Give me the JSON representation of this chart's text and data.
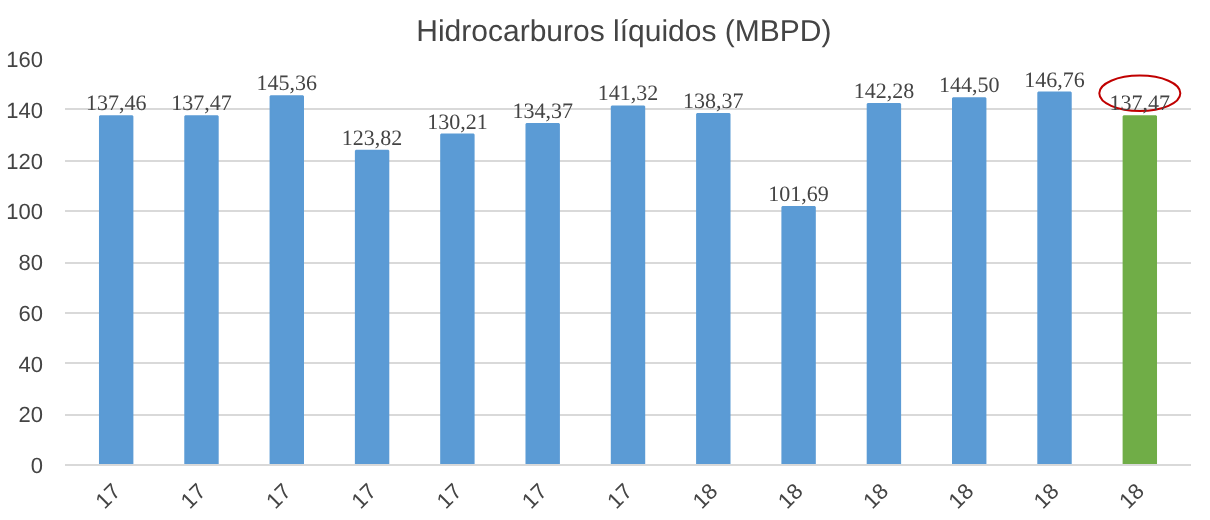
{
  "chart_data": {
    "type": "bar",
    "title": "Hidrocarburos líquidos  (MBPD)",
    "categories": [
      "17",
      "17",
      "17",
      "17",
      "17",
      "17",
      "17",
      "18",
      "18",
      "18",
      "18",
      "18",
      "18"
    ],
    "values": [
      137.46,
      137.47,
      145.36,
      123.82,
      130.21,
      134.37,
      141.32,
      138.37,
      101.69,
      142.28,
      144.5,
      146.76,
      137.47
    ],
    "value_labels": [
      "137,46",
      "137,47",
      "145,36",
      "123,82",
      "130,21",
      "134,37",
      "141,32",
      "138,37",
      "101,69",
      "142,28",
      "144,50",
      "146,76",
      "137,47"
    ],
    "colors": [
      "#5b9bd5",
      "#5b9bd5",
      "#5b9bd5",
      "#5b9bd5",
      "#5b9bd5",
      "#5b9bd5",
      "#5b9bd5",
      "#5b9bd5",
      "#5b9bd5",
      "#5b9bd5",
      "#5b9bd5",
      "#5b9bd5",
      "#70ad47"
    ],
    "ylim": [
      0,
      160
    ],
    "yticks": [
      0,
      20,
      40,
      60,
      80,
      100,
      120,
      140,
      160
    ],
    "grid": "y"
  }
}
